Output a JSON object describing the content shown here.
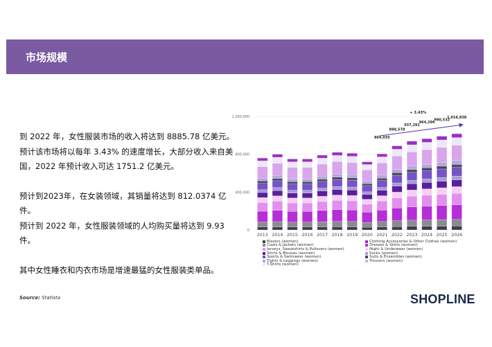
{
  "header": {
    "title": "市场规模"
  },
  "text": {
    "p1_lines": [
      "到 2022 年，女性服装市场的收入将达到 8885.78 亿美元。",
      "预计该市场将以每年 3.43% 的速度增长，大部分收入来自美",
      "国，2022 年预计收入可达 1751.2 亿美元。"
    ],
    "p2_lines": [
      "预计到2023年，在女装领域，其销量将达到 812.0374 亿件。",
      "预计到 2022 年，女性服装领域的人均购买量将达到 9.93 件。"
    ],
    "p3": "其中女性睡衣和内衣市场是增速最猛的女性服装类单品。"
  },
  "source": {
    "label": "Source:",
    "value": "Statista"
  },
  "logo": {
    "part1": "SHOP",
    "part2": "LINE"
  },
  "chart_data": {
    "type": "bar",
    "stacked": true,
    "categories": [
      "2013",
      "2014",
      "2015",
      "2016",
      "2017",
      "2018",
      "2019",
      "2020",
      "2021",
      "2022",
      "2023",
      "2024",
      "2025",
      "2026"
    ],
    "ylim": [
      0,
      1200000
    ],
    "yticks": [
      "0",
      "400,000",
      "800,000",
      "1,200,000"
    ],
    "ytick_values": [
      0,
      400000,
      800000,
      1200000
    ],
    "totals": [
      760000,
      800000,
      750000,
      750000,
      790000,
      820000,
      810000,
      720000,
      804035,
      888578,
      937291,
      964296,
      990532,
      1016838
    ],
    "data_labels": [
      {
        "category": "2021",
        "text": "804,035"
      },
      {
        "category": "2022",
        "text": "888,578"
      },
      {
        "category": "2023",
        "text": "937,291"
      },
      {
        "category": "2024",
        "text": "964,296"
      },
      {
        "category": "2025",
        "text": "990,532"
      },
      {
        "category": "2026",
        "text": "1,016,838"
      }
    ],
    "growth_annotation": "+ 3.43%",
    "series": [
      {
        "name": "Blazers (women)",
        "color": "#3d3d47",
        "share": 0.04
      },
      {
        "name": "Coats & Jackets (women)",
        "color": "#8a8a93",
        "share": 0.07
      },
      {
        "name": "Dresses & Skirts (women)",
        "color": "#b52ed8",
        "share": 0.15
      },
      {
        "name": "Jerseys, Sweatshirts & Pullovers (women)",
        "color": "#e28fee",
        "share": 0.12
      },
      {
        "name": "Night & Underwear (women)",
        "color": "#f5cff5",
        "share": 0.07
      },
      {
        "name": "Shirts & Blouses (women)",
        "color": "#5a1f9a",
        "share": 0.07
      },
      {
        "name": "Socks (women)",
        "color": "#a99ad9",
        "share": 0.04
      },
      {
        "name": "Sports & Swimwear (women)",
        "color": "#7653c7",
        "share": 0.09
      },
      {
        "name": "Suits & Ensembles (women)",
        "color": "#4a4a57",
        "share": 0.03
      },
      {
        "name": "Tights & Leggings (women)",
        "color": "#b4a6e0",
        "share": 0.04
      },
      {
        "name": "Trousers (women)",
        "color": "#d9a6ec",
        "share": 0.16
      },
      {
        "name": "T-Shirts (women)",
        "color": "#ece8f6",
        "share": 0.08
      },
      {
        "name": "Clothing Accessories & Other Clothes (women)",
        "color": "#9b2fc4",
        "share": 0.04
      }
    ],
    "legend_order": [
      "Blazers (women)",
      "Clothing Accessories & Other Clothes (women)",
      "Coats & Jackets (women)",
      "Dresses & Skirts (women)",
      "Jerseys, Sweatshirts & Pullovers (women)",
      "Night & Underwear (women)",
      "Shirts & Blouses (women)",
      "Socks (women)",
      "Sports & Swimwear (women)",
      "Suits & Ensembles (women)",
      "Tights & Leggings (women)",
      "Trousers (women)",
      "T-Shirts (women)"
    ]
  },
  "colors": {
    "header_bg": "#7a5aa0",
    "arrow": "#5b3fa8"
  }
}
